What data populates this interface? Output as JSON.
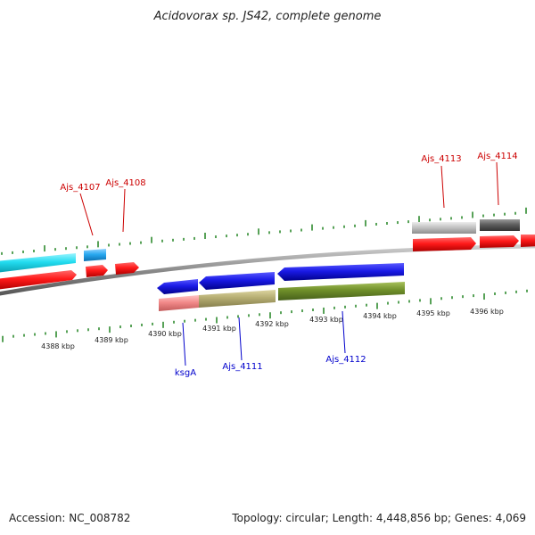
{
  "title": "Acidovorax sp. JS42, complete genome",
  "footer": {
    "accession": "Accession: NC_008782",
    "summary": "Topology: circular; Length: 4,448,856 bp; Genes: 4,069"
  },
  "colors": {
    "background": "#ffffff",
    "backbone": "#8a8a8a",
    "tick": "#2e8b2e",
    "top_label": "#cc0000",
    "bottom_label": "#0000cc",
    "forward_cds": "#ff1a1a",
    "reverse_cds": "#1a1ae6",
    "cyan_feature": "#22dcf0",
    "sky_feature": "#29a8f0",
    "light_gray_feature": "#c4c4c4",
    "dark_gray_feature": "#5e5e5e",
    "pink_feature": "#f28a8a",
    "khaki_feature": "#b5ad72",
    "olive_feature": "#6f8f2a"
  },
  "axis": {
    "ticks": [
      "4388 kbp",
      "4389 kbp",
      "4390 kbp",
      "4391 kbp",
      "4392 kbp",
      "4393 kbp",
      "4394 kbp",
      "4395 kbp",
      "4396 kbp"
    ]
  },
  "gene_labels": {
    "top": [
      "Ajs_4107",
      "Ajs_4108",
      "Ajs_4113",
      "Ajs_4114"
    ],
    "bottom": [
      "ksgA",
      "Ajs_4111",
      "Ajs_4112"
    ]
  }
}
